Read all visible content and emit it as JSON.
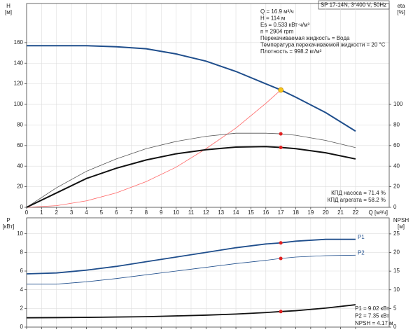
{
  "chart_data": [
    {
      "type": "line",
      "title": "SP 17-14N, 3*400 V, 50Hz",
      "ylabel": [
        "H",
        "[м]"
      ],
      "y2label": [
        "eta",
        "[%]"
      ],
      "xlabel": "Q [м³/ч]",
      "annotations": [
        "Q = 16.9 м³/ч",
        "H = 114 м",
        "Es = 0.533 кВт·ч/м³",
        "n = 2904 rpm",
        "Перекачиваемая жидкость = Вода",
        "Температура перекачиваемой жидкости = 20 °C",
        "Плотность = 998.2 кг/м³"
      ],
      "notes": [
        "КПД насоса = 71.4 %",
        "КПД агрегата = 58.2 %"
      ],
      "xlim": [
        0,
        24.25
      ],
      "xticks": [
        0,
        1,
        2,
        3,
        4,
        5,
        6,
        7,
        8,
        9,
        10,
        11,
        12,
        13,
        14,
        15,
        16,
        17,
        18,
        19,
        20,
        21,
        22
      ],
      "ylim": [
        0,
        198
      ],
      "yticks": [
        0,
        20,
        40,
        60,
        80,
        100,
        120,
        140,
        160
      ],
      "y2lim": [
        0,
        198
      ],
      "y2ticks": [
        0,
        20,
        40,
        60,
        80,
        100
      ],
      "grid": true,
      "x": [
        0,
        2,
        4,
        6,
        8,
        10,
        12,
        14,
        16,
        17,
        18,
        20,
        22
      ],
      "series": [
        {
          "color": "#1f4e8c",
          "width": 2,
          "values": [
            157,
            157,
            157,
            156,
            154,
            149,
            142,
            132,
            120,
            114,
            107,
            92,
            74
          ]
        },
        {
          "color": "#ff6666",
          "width": 0.8,
          "values": [
            0,
            1.6,
            6.3,
            14,
            25,
            39,
            57,
            77,
            101,
            114,
            null,
            null,
            null
          ]
        },
        {
          "color": "#555555",
          "width": 0.8,
          "axis": "y2",
          "values": [
            0,
            19,
            35,
            47,
            57,
            64,
            69,
            72,
            72,
            71.4,
            70,
            65,
            58
          ]
        },
        {
          "color": "#111111",
          "width": 2,
          "axis": "y2",
          "values": [
            0,
            14,
            28,
            38,
            46,
            52,
            56,
            58.5,
            59,
            58.2,
            57,
            53,
            47
          ]
        }
      ],
      "markers": [
        {
          "x": 17,
          "y": 114,
          "color": "#f5c518"
        },
        {
          "x": 17,
          "y": 71.4,
          "color": "#e02020",
          "axis": "y2"
        },
        {
          "x": 17,
          "y": 58.2,
          "color": "#e02020",
          "axis": "y2"
        }
      ]
    },
    {
      "type": "line",
      "ylabel": [
        "P",
        "[кВт]"
      ],
      "y2label": [
        "NPSH",
        "[м]"
      ],
      "notes": [
        "P1 = 9.02 кВт",
        "P2 = 7.35 кВт",
        "NPSH = 4.17 м"
      ],
      "xlim": [
        0,
        24.25
      ],
      "xticks": [
        0,
        1,
        2,
        3,
        4,
        5,
        6,
        7,
        8,
        9,
        10,
        11,
        12,
        13,
        14,
        15,
        16,
        17,
        18,
        19,
        20,
        21,
        22
      ],
      "show_xtick_labels": false,
      "ylim": [
        0,
        11.7
      ],
      "yticks": [
        0,
        2,
        4,
        6,
        8,
        10
      ],
      "y2lim": [
        0,
        29.3
      ],
      "y2ticks": [
        0,
        5,
        10,
        15,
        20,
        25
      ],
      "grid": true,
      "x": [
        0,
        2,
        4,
        6,
        8,
        10,
        12,
        14,
        16,
        17,
        18,
        20,
        22
      ],
      "series": [
        {
          "name": "P1",
          "color": "#1f4e8c",
          "width": 1.8,
          "values": [
            5.7,
            5.8,
            6.1,
            6.5,
            7.0,
            7.5,
            8.0,
            8.5,
            8.9,
            9.02,
            9.2,
            9.4,
            9.4
          ]
        },
        {
          "name": "P2",
          "color": "#1f4e8c",
          "width": 0.8,
          "values": [
            4.6,
            4.6,
            4.85,
            5.2,
            5.6,
            6.0,
            6.4,
            6.8,
            7.15,
            7.35,
            7.5,
            7.65,
            7.7
          ]
        },
        {
          "color": "#111111",
          "width": 1.8,
          "axis": "y2",
          "values": [
            2.5,
            2.55,
            2.6,
            2.7,
            2.8,
            3.0,
            3.2,
            3.5,
            3.9,
            4.17,
            4.4,
            5.1,
            6.0
          ]
        }
      ],
      "markers": [
        {
          "x": 17,
          "y": 9.02,
          "color": "#e02020"
        },
        {
          "x": 17,
          "y": 7.35,
          "color": "#e02020"
        },
        {
          "x": 17,
          "y": 4.17,
          "color": "#e02020",
          "axis": "y2"
        }
      ]
    }
  ]
}
